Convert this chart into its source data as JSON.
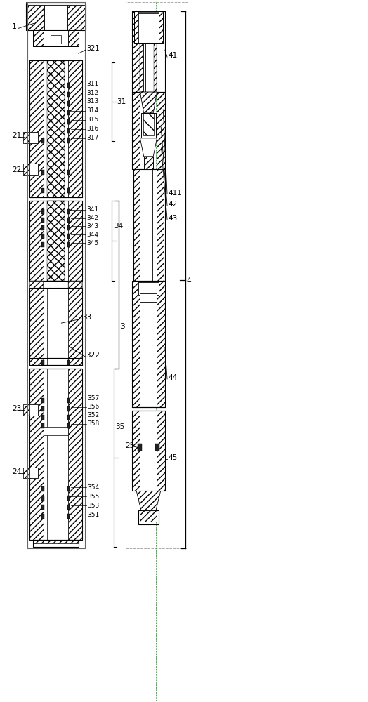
{
  "bg_color": "#ffffff",
  "line_color": "#000000",
  "fig_width": 5.24,
  "fig_height": 10.0,
  "dpi": 100
}
